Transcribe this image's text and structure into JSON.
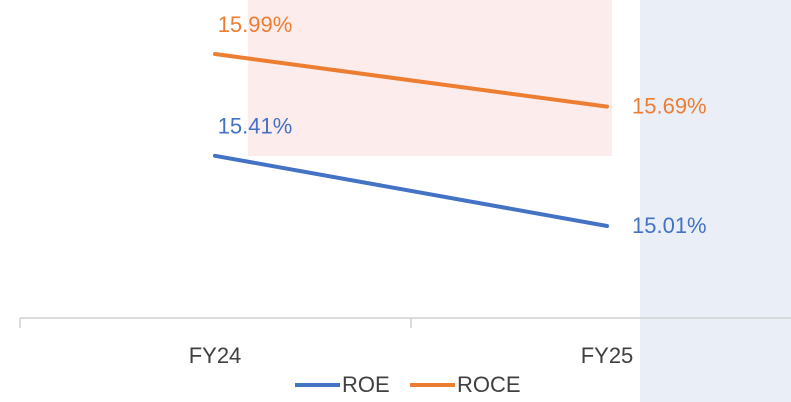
{
  "chart_data": {
    "type": "line",
    "categories": [
      "FY24",
      "FY25"
    ],
    "series": [
      {
        "name": "ROE",
        "color": "#4472c4",
        "values": [
          15.41,
          15.01
        ],
        "value_labels": [
          "15.41%",
          "15.01%"
        ]
      },
      {
        "name": "ROCE",
        "color": "#ed7d31",
        "values": [
          15.99,
          15.69
        ],
        "value_labels": [
          "15.99%",
          "15.69%"
        ]
      }
    ]
  }
}
